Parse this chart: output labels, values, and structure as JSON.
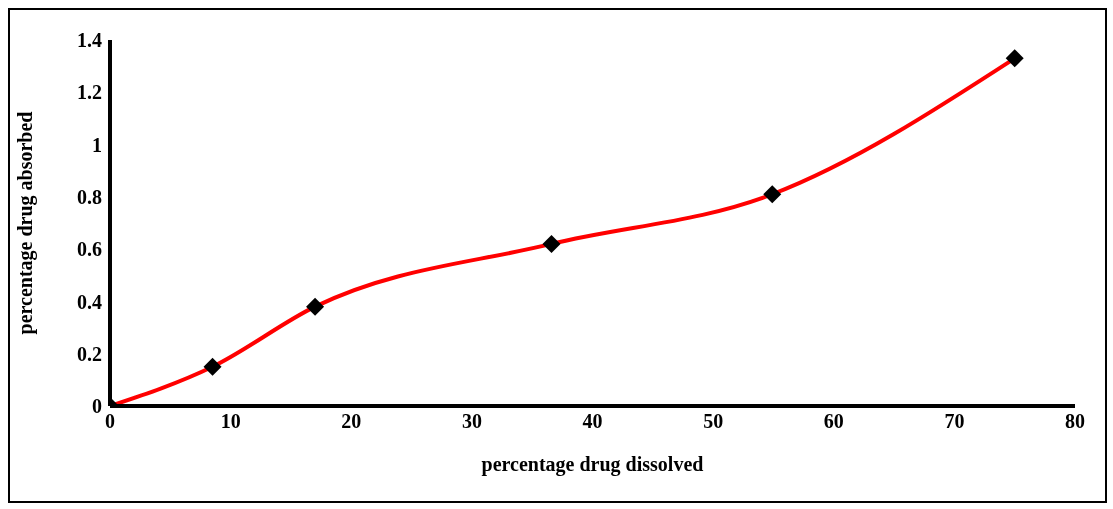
{
  "chart_data": {
    "type": "line",
    "xlabel": "percentage drug dissolved",
    "ylabel": "percentage drug absorbed",
    "x": [
      0,
      8.5,
      17,
      36.6,
      54.9,
      75
    ],
    "series": [
      {
        "color": "#ff0000",
        "values": [
          0,
          0.15,
          0.38,
          0.62,
          0.81,
          1.33
        ]
      }
    ],
    "xlim": [
      0,
      80
    ],
    "xticks": [
      0,
      10,
      20,
      30,
      40,
      50,
      60,
      70,
      80
    ],
    "ylim": [
      0,
      1.4
    ],
    "yticks": [
      0,
      0.2,
      0.4,
      0.6,
      0.8,
      1,
      1.2,
      1.4
    ],
    "grid": false,
    "marker": "diamond",
    "line_style": "solid"
  }
}
